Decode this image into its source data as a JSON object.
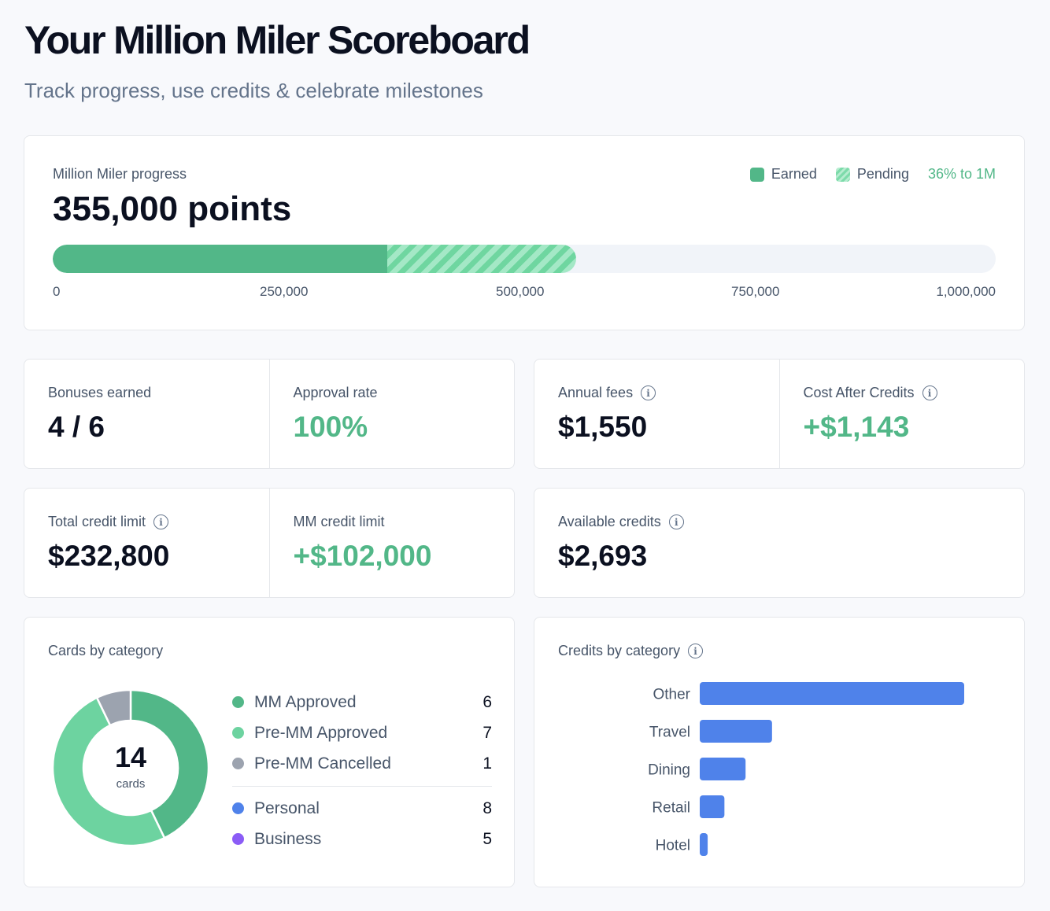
{
  "header": {
    "title": "Your Million Miler Scoreboard",
    "subtitle": "Track progress, use credits & celebrate milestones"
  },
  "progress": {
    "label": "Million Miler progress",
    "points_text": "355,000 points",
    "legend_earned": "Earned",
    "legend_pending": "Pending",
    "percent_text": "36% to 1M",
    "earned_fraction": 0.355,
    "pending_end_fraction": 0.555,
    "ticks": [
      "0",
      "250,000",
      "500,000",
      "750,000",
      "1,000,000"
    ],
    "colors": {
      "earned": "#52b788",
      "pending": "#6fd6a0",
      "track": "#f1f4f9"
    }
  },
  "stats": {
    "bonuses_label": "Bonuses earned",
    "bonuses_value": "4 / 6",
    "approval_label": "Approval rate",
    "approval_value": "100%",
    "fees_label": "Annual fees",
    "fees_value": "$1,550",
    "cost_label": "Cost After Credits",
    "cost_value": "+$1,143",
    "total_limit_label": "Total credit limit",
    "total_limit_value": "$232,800",
    "mm_limit_label": "MM credit limit",
    "mm_limit_value": "+$102,000",
    "avail_label": "Available credits",
    "avail_value": "$2,693"
  },
  "cards_by_category": {
    "title": "Cards by category",
    "total": "14",
    "unit": "cards",
    "status": [
      {
        "name": "MM Approved",
        "count": "6",
        "color": "#52b788"
      },
      {
        "name": "Pre-MM Approved",
        "count": "7",
        "color": "#6dd3a0"
      },
      {
        "name": "Pre-MM Cancelled",
        "count": "1",
        "color": "#9ca3af"
      }
    ],
    "type": [
      {
        "name": "Personal",
        "count": "8",
        "color": "#4f82ea"
      },
      {
        "name": "Business",
        "count": "5",
        "color": "#8b5cf6"
      }
    ]
  },
  "credits_by_category": {
    "title": "Credits by category",
    "bar_color": "#4f82ea"
  },
  "chart_data": {
    "type": "bar",
    "orientation": "horizontal",
    "categories": [
      "Other",
      "Travel",
      "Dining",
      "Retail",
      "Hotel"
    ],
    "values": [
      1500,
      410,
      260,
      140,
      45
    ],
    "xlim": [
      0,
      1500
    ]
  }
}
